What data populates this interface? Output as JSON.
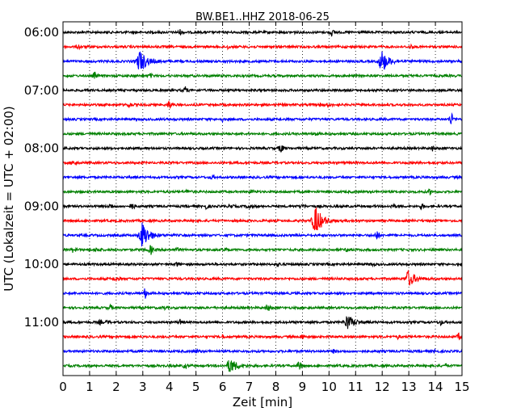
{
  "chart_data": {
    "type": "line",
    "title": "BW.BE1..HHZ 2018-06-25",
    "xlabel": "Zeit  [min]",
    "ylabel": "UTC (Lokalzeit = UTC + 02:00)",
    "xlim": [
      0,
      15
    ],
    "x_ticks": [
      0,
      1,
      2,
      3,
      4,
      5,
      6,
      7,
      8,
      9,
      10,
      11,
      12,
      13,
      14,
      15
    ],
    "x_tick_labels": [
      "0",
      "1",
      "2",
      "3",
      "4",
      "5",
      "6",
      "7",
      "8",
      "9",
      "10",
      "11",
      "12",
      "13",
      "14",
      "15"
    ],
    "y_tick_labels": [
      "06:00",
      "07:00",
      "08:00",
      "09:00",
      "10:00",
      "11:00"
    ],
    "y_tick_rows": [
      0,
      4,
      8,
      12,
      16,
      20
    ],
    "grid": "vertical-dotted",
    "trace_colors": [
      "#000000",
      "#ff0000",
      "#0000ff",
      "#008000"
    ],
    "traces": [
      {
        "start": "06:00",
        "color": "#000000",
        "events": [
          [
            4.4,
            3
          ],
          [
            10.1,
            4
          ],
          [
            8.7,
            1
          ]
        ]
      },
      {
        "start": "06:15",
        "color": "#ff0000",
        "events": [
          [
            0.6,
            2
          ],
          [
            6.2,
            2
          ],
          [
            13.1,
            2
          ]
        ]
      },
      {
        "start": "06:30",
        "color": "#0000ff",
        "events": [
          [
            2.9,
            14
          ],
          [
            12.0,
            13
          ]
        ]
      },
      {
        "start": "06:45",
        "color": "#008000",
        "events": [
          [
            1.2,
            4
          ],
          [
            3.3,
            2
          ]
        ]
      },
      {
        "start": "07:00",
        "color": "#000000",
        "events": [
          [
            4.6,
            4
          ]
        ]
      },
      {
        "start": "07:15",
        "color": "#ff0000",
        "events": [
          [
            2.5,
            3
          ],
          [
            4.0,
            5
          ],
          [
            9.7,
            2
          ],
          [
            10.0,
            2
          ]
        ]
      },
      {
        "start": "07:30",
        "color": "#0000ff",
        "events": [
          [
            6.0,
            2
          ],
          [
            14.6,
            8
          ]
        ]
      },
      {
        "start": "07:45",
        "color": "#008000",
        "events": [
          [
            9.5,
            2
          ]
        ]
      },
      {
        "start": "08:00",
        "color": "#000000",
        "events": [
          [
            8.2,
            6
          ],
          [
            13.9,
            3
          ]
        ]
      },
      {
        "start": "08:15",
        "color": "#ff0000",
        "events": [
          [
            0.4,
            3
          ]
        ]
      },
      {
        "start": "08:30",
        "color": "#0000ff",
        "events": [
          [
            5.6,
            2
          ]
        ]
      },
      {
        "start": "08:45",
        "color": "#008000",
        "events": [
          [
            4.7,
            3
          ],
          [
            7.1,
            2
          ],
          [
            13.8,
            3
          ]
        ]
      },
      {
        "start": "09:00",
        "color": "#000000",
        "events": [
          [
            1.8,
            3
          ],
          [
            2.6,
            4
          ],
          [
            5.4,
            3
          ],
          [
            6.3,
            3
          ],
          [
            7.0,
            3
          ],
          [
            9.0,
            3
          ],
          [
            12.4,
            3
          ],
          [
            13.5,
            3
          ]
        ]
      },
      {
        "start": "09:15",
        "color": "#ff0000",
        "events": [
          [
            9.5,
            18
          ]
        ]
      },
      {
        "start": "09:30",
        "color": "#0000ff",
        "events": [
          [
            3.0,
            16
          ],
          [
            11.8,
            6
          ]
        ]
      },
      {
        "start": "09:45",
        "color": "#008000",
        "events": [
          [
            0.4,
            3
          ],
          [
            1.3,
            3
          ],
          [
            3.3,
            6
          ],
          [
            4.3,
            2
          ],
          [
            6.1,
            2
          ],
          [
            10.7,
            2
          ]
        ]
      },
      {
        "start": "10:00",
        "color": "#000000",
        "events": [
          [
            4.3,
            2
          ],
          [
            8.1,
            2
          ],
          [
            11.6,
            2
          ]
        ]
      },
      {
        "start": "10:15",
        "color": "#ff0000",
        "events": [
          [
            2.0,
            3
          ],
          [
            13.0,
            10
          ]
        ]
      },
      {
        "start": "10:30",
        "color": "#0000ff",
        "events": [
          [
            3.1,
            6
          ]
        ]
      },
      {
        "start": "10:45",
        "color": "#008000",
        "events": [
          [
            1.8,
            3
          ],
          [
            3.8,
            2
          ],
          [
            7.7,
            5
          ]
        ]
      },
      {
        "start": "11:00",
        "color": "#000000",
        "events": [
          [
            1.4,
            2
          ],
          [
            1.7,
            2
          ],
          [
            4.4,
            3
          ],
          [
            10.7,
            9
          ],
          [
            14.2,
            3
          ]
        ]
      },
      {
        "start": "11:15",
        "color": "#ff0000",
        "events": [
          [
            6.0,
            2
          ],
          [
            9.0,
            3
          ],
          [
            12.6,
            2
          ],
          [
            14.9,
            4
          ]
        ]
      },
      {
        "start": "11:30",
        "color": "#0000ff",
        "events": [
          [
            5.0,
            2
          ],
          [
            10.2,
            2
          ],
          [
            14.0,
            2
          ]
        ]
      },
      {
        "start": "11:45",
        "color": "#008000",
        "events": [
          [
            4.6,
            3
          ],
          [
            6.3,
            9
          ],
          [
            8.9,
            6
          ],
          [
            14.4,
            2
          ]
        ]
      }
    ]
  }
}
